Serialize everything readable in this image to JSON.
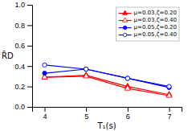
{
  "chart_data": {
    "type": "line",
    "x": [
      4,
      5,
      6,
      7
    ],
    "series": [
      {
        "name": "μ=0.03,ζ=0.20",
        "color": "red",
        "marker": "triangle",
        "values": [
          0.29,
          0.31,
          0.2,
          0.12
        ]
      },
      {
        "name": "μ=0.03,ζ=0.40",
        "color": "red",
        "marker": "triangle-open",
        "values": [
          0.29,
          0.3,
          0.18,
          0.11
        ]
      },
      {
        "name": "μ=0.05,ζ=0.20",
        "color": "blue",
        "marker": "circle",
        "values": [
          0.33,
          0.37,
          0.28,
          0.19
        ]
      },
      {
        "name": "μ=0.05,ζ=0.40",
        "color": "blue",
        "marker": "circle-open",
        "values": [
          0.41,
          0.37,
          0.28,
          0.2
        ]
      }
    ],
    "x_label": "T₁(s)",
    "y_label": "R̄D",
    "xlim": [
      3.7,
      7.3
    ],
    "ylim": [
      0.0,
      1.0
    ],
    "xticks": [
      4,
      5,
      6,
      7
    ],
    "yticks": [
      {
        "value": 0,
        "label": "0.0"
      },
      0.2,
      0.4,
      0.6,
      0.8,
      {
        "value": 1,
        "label": "1.0"
      }
    ],
    "grid": false,
    "legend": "upper-right"
  }
}
